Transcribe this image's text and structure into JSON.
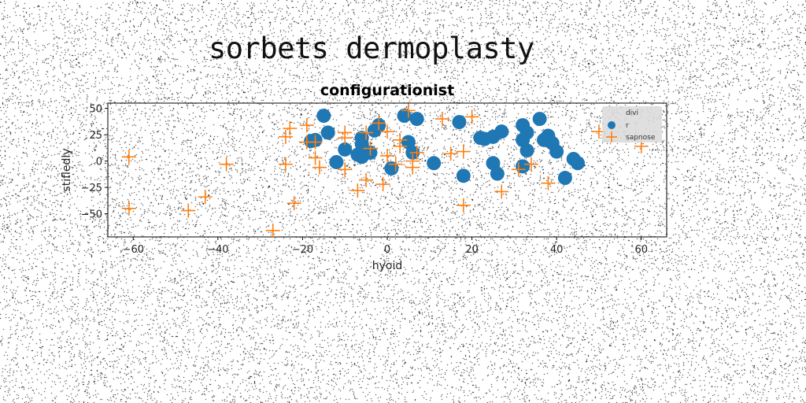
{
  "figure": {
    "suptitle": "sorbets dermoplasty"
  },
  "chart_data": {
    "type": "scatter",
    "title": "configurationist",
    "xlabel": "hyoid",
    "ylabel": "stifledly",
    "xlim": [
      -66,
      66
    ],
    "ylim": [
      -72,
      55
    ],
    "xticks": [
      -60,
      -40,
      -20,
      0,
      20,
      40,
      60
    ],
    "yticks": [
      50,
      25,
      0,
      -25,
      -50
    ],
    "grid": false,
    "legend": {
      "title": "divi",
      "placement": "top-right"
    },
    "series": [
      {
        "name": "r",
        "marker": "circle",
        "color": "#1f77b4",
        "points": [
          [
            -15,
            43
          ],
          [
            -14,
            27
          ],
          [
            -17,
            20
          ],
          [
            -18,
            19
          ],
          [
            -10,
            11
          ],
          [
            -12,
            -1
          ],
          [
            -6,
            22
          ],
          [
            -6,
            16
          ],
          [
            -6,
            4
          ],
          [
            -7,
            6
          ],
          [
            -4,
            8
          ],
          [
            -3,
            29
          ],
          [
            -2,
            34
          ],
          [
            4,
            43
          ],
          [
            7,
            40
          ],
          [
            5,
            18
          ],
          [
            6,
            8
          ],
          [
            1,
            -7
          ],
          [
            11,
            -2
          ],
          [
            17,
            37
          ],
          [
            18,
            -14
          ],
          [
            22,
            22
          ],
          [
            23,
            21
          ],
          [
            25,
            23
          ],
          [
            25,
            -2
          ],
          [
            26,
            -12
          ],
          [
            27,
            28
          ],
          [
            32,
            34
          ],
          [
            33,
            27
          ],
          [
            32,
            20
          ],
          [
            33,
            10
          ],
          [
            32,
            -5
          ],
          [
            36,
            40
          ],
          [
            37,
            20
          ],
          [
            38,
            24
          ],
          [
            39,
            17
          ],
          [
            40,
            9
          ],
          [
            42,
            -16
          ],
          [
            44,
            2
          ],
          [
            45,
            -2
          ]
        ]
      },
      {
        "name": "sapnose",
        "marker": "plus",
        "color": "#ff7f0e",
        "points": [
          [
            -61,
            4
          ],
          [
            -61,
            -45
          ],
          [
            -47,
            -47
          ],
          [
            -43,
            -34
          ],
          [
            -38,
            -3
          ],
          [
            -27,
            -66
          ],
          [
            -24,
            23
          ],
          [
            -24,
            -3
          ],
          [
            -23,
            31
          ],
          [
            -22,
            -40
          ],
          [
            -19,
            34
          ],
          [
            -19,
            18
          ],
          [
            -17,
            18
          ],
          [
            -17,
            3
          ],
          [
            -16,
            -6
          ],
          [
            -10,
            22
          ],
          [
            -10,
            27
          ],
          [
            -10,
            -8
          ],
          [
            -7,
            -28
          ],
          [
            -5,
            -18
          ],
          [
            -4,
            12
          ],
          [
            -5,
            27
          ],
          [
            -2,
            36
          ],
          [
            -1,
            -22
          ],
          [
            0,
            28
          ],
          [
            0,
            5
          ],
          [
            2,
            -3
          ],
          [
            3,
            20
          ],
          [
            3,
            14
          ],
          [
            5,
            48
          ],
          [
            6,
            0
          ],
          [
            6,
            -6
          ],
          [
            7,
            8
          ],
          [
            13,
            40
          ],
          [
            15,
            7
          ],
          [
            18,
            9
          ],
          [
            18,
            -42
          ],
          [
            20,
            42
          ],
          [
            27,
            -29
          ],
          [
            31,
            -8
          ],
          [
            34,
            -3
          ],
          [
            38,
            -21
          ],
          [
            50,
            28
          ],
          [
            60,
            14
          ]
        ]
      }
    ]
  }
}
